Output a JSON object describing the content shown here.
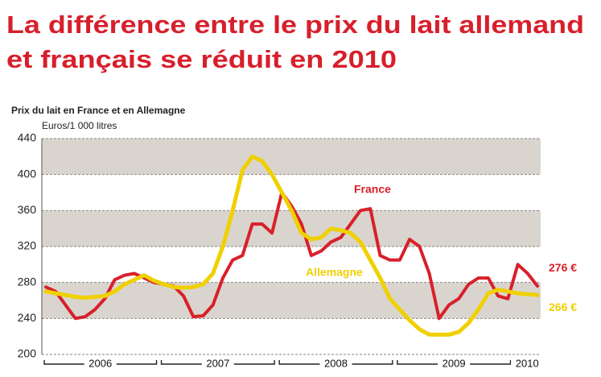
{
  "chart_data": {
    "type": "line",
    "title": [
      "La différence entre le prix du lait allemand",
      "et français se réduit en 2010"
    ],
    "subtitle": "Prix du lait en France et en Allemagne",
    "y_label": "Euros/1 000 litres",
    "categories": [
      null,
      null,
      null,
      null,
      null,
      null,
      null,
      null,
      null,
      null,
      null,
      null,
      null,
      null,
      null,
      null,
      null,
      null,
      null,
      null,
      null,
      null,
      null,
      null,
      null,
      null,
      null,
      null,
      null,
      null,
      null,
      null,
      null,
      null,
      null,
      null,
      null,
      null,
      null,
      null,
      null,
      null,
      null,
      null,
      null,
      null,
      null,
      null,
      null,
      null,
      null
    ],
    "x_groups": [
      {
        "label": "2006",
        "count": 12
      },
      {
        "label": "2007",
        "count": 12
      },
      {
        "label": "2008",
        "count": 12
      },
      {
        "label": "2009",
        "count": 12
      },
      {
        "label": "2010",
        "count": 3
      }
    ],
    "ylim": [
      200,
      440
    ],
    "yticks": [
      200,
      240,
      280,
      320,
      360,
      400,
      440
    ],
    "bands": [
      "#d9d5ce",
      "#ffffff"
    ],
    "series": [
      {
        "name": "France",
        "color": "#d8202a",
        "values": [
          275,
          270,
          255,
          240,
          242,
          250,
          262,
          283,
          288,
          290,
          285,
          280,
          278,
          276,
          265,
          242,
          243,
          255,
          285,
          305,
          310,
          345,
          345,
          335,
          380,
          365,
          345,
          310,
          315,
          325,
          330,
          345,
          360,
          362,
          310,
          305,
          305,
          328,
          320,
          290,
          240,
          255,
          262,
          278,
          285,
          285,
          265,
          262,
          300,
          290,
          276
        ],
        "value_labels": [
          null,
          null,
          null,
          null,
          null,
          null,
          null,
          null,
          null,
          null,
          null,
          null,
          null,
          null,
          null,
          null,
          null,
          null,
          null,
          null,
          null,
          null,
          null,
          null,
          null,
          null,
          null,
          null,
          null,
          null,
          null,
          null,
          null,
          null,
          null,
          null,
          null,
          null,
          null,
          null,
          null,
          null,
          null,
          null,
          null,
          null,
          null,
          null,
          null,
          null,
          "276 €"
        ]
      },
      {
        "name": "Allemagne",
        "color": "#f0d000",
        "values": [
          270,
          268,
          266,
          264,
          263,
          264,
          265,
          270,
          278,
          283,
          288,
          282,
          278,
          275,
          274,
          275,
          278,
          290,
          320,
          360,
          405,
          420,
          415,
          400,
          380,
          360,
          335,
          328,
          330,
          340,
          338,
          335,
          325,
          305,
          285,
          262,
          250,
          238,
          228,
          222,
          222,
          222,
          225,
          235,
          250,
          268,
          272,
          270,
          268,
          267,
          266
        ],
        "value_labels": [
          null,
          null,
          null,
          null,
          null,
          null,
          null,
          null,
          null,
          null,
          null,
          null,
          null,
          null,
          null,
          null,
          null,
          null,
          null,
          null,
          null,
          null,
          null,
          null,
          null,
          null,
          null,
          null,
          null,
          null,
          null,
          null,
          null,
          null,
          null,
          null,
          null,
          null,
          null,
          null,
          null,
          null,
          null,
          null,
          null,
          null,
          null,
          null,
          null,
          null,
          "266 €"
        ]
      }
    ]
  }
}
